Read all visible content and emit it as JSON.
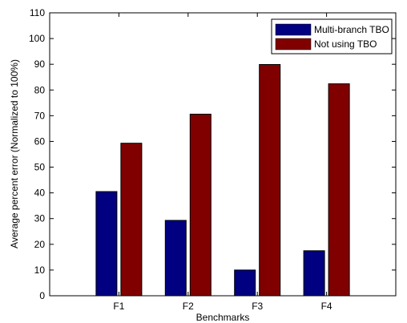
{
  "chart_data": {
    "type": "bar",
    "title": "",
    "xlabel": "Benchmarks",
    "ylabel": "Average percent error (Normalized to 100%)",
    "categories": [
      "F1",
      "F2",
      "F3",
      "F4"
    ],
    "ylim": [
      0,
      110
    ],
    "yticks": [
      0,
      10,
      20,
      30,
      40,
      50,
      60,
      70,
      80,
      90,
      100,
      110
    ],
    "grid": false,
    "legend_position": "top-right",
    "series": [
      {
        "name": "Multi-branch TBO",
        "color": "#000080",
        "values": [
          40.5,
          29.3,
          10.0,
          17.5
        ]
      },
      {
        "name": "Not using TBO",
        "color": "#800000",
        "values": [
          59.3,
          70.6,
          89.9,
          82.4
        ]
      }
    ]
  }
}
